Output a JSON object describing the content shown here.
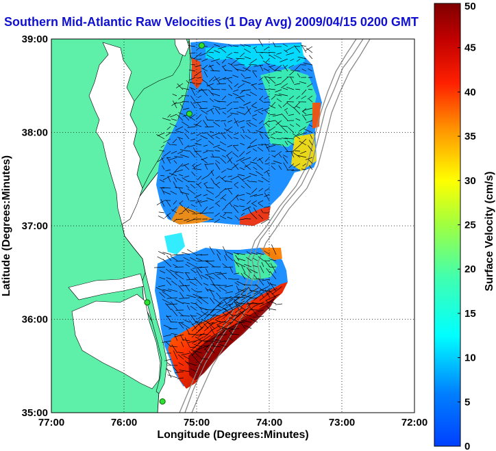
{
  "title": "Southern Mid-Atlantic Raw Velocities (1 Day Avg) 2009/04/15 0200 GMT",
  "axes": {
    "xlabel": "Longitude (Degrees:Minutes)",
    "ylabel": "Latitude (Degrees:Minutes)",
    "x_ticks": [
      "77:00",
      "76:00",
      "75:00",
      "74:00",
      "73:00",
      "72:00"
    ],
    "y_ticks": [
      "39:00",
      "38:00",
      "37:00",
      "36:00",
      "35:00"
    ]
  },
  "colorbar": {
    "label": "Surface Velocity (cm/s)",
    "ticks": [
      "50",
      "45",
      "40",
      "35",
      "30",
      "25",
      "20",
      "15",
      "10",
      "5",
      "0"
    ],
    "min": 0,
    "max": 50
  },
  "colors": {
    "land": "#5ef0a8",
    "water": "#ffffff",
    "title": "#1010d0"
  },
  "stations": [
    {
      "lon": -74.93,
      "lat": 38.93
    },
    {
      "lon": -75.1,
      "lat": 38.2
    },
    {
      "lon": -75.68,
      "lat": 36.18
    },
    {
      "lon": -75.47,
      "lat": 35.12
    }
  ]
}
